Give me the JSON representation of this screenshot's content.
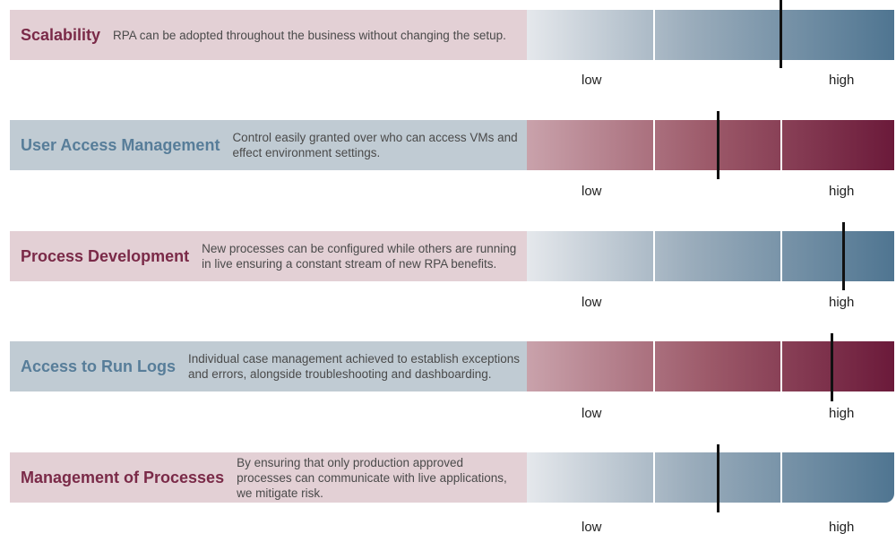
{
  "chart_data": {
    "type": "bar",
    "scale_low_label": "low",
    "scale_high_label": "high",
    "items": [
      {
        "title": "Scalability",
        "description": "RPA can be adopted throughout the business without changing the setup.",
        "value": 0.69,
        "label_bg": "#e3d0d5",
        "title_color": "#7a2a48",
        "scale_color": "#4f7591"
      },
      {
        "title": "User Access Management",
        "description": "Control easily granted over who can access VMs and effect environment settings.",
        "value": 0.52,
        "label_bg": "#c0cbd3",
        "title_color": "#577d99",
        "scale_color": "#6b1a3a"
      },
      {
        "title": "Process Development",
        "description": "New processes can be configured while others are running in live ensuring a constant stream of new RPA benefits.",
        "value": 0.86,
        "label_bg": "#e3d0d5",
        "title_color": "#7a2a48",
        "scale_color": "#4f7591"
      },
      {
        "title": "Access to Run Logs",
        "description": "Individual case management achieved to establish exceptions and errors, alongside troubleshooting and dashboarding.",
        "value": 0.83,
        "label_bg": "#c0cbd3",
        "title_color": "#577d99",
        "scale_color": "#6b1a3a"
      },
      {
        "title": "Management of Processes",
        "description": "By ensuring that only production approved processes can communicate with live applications, we mitigate risk.",
        "value": 0.52,
        "label_bg": "#e3d0d5",
        "title_color": "#7a2a48",
        "scale_color": "#4f7591"
      }
    ]
  }
}
